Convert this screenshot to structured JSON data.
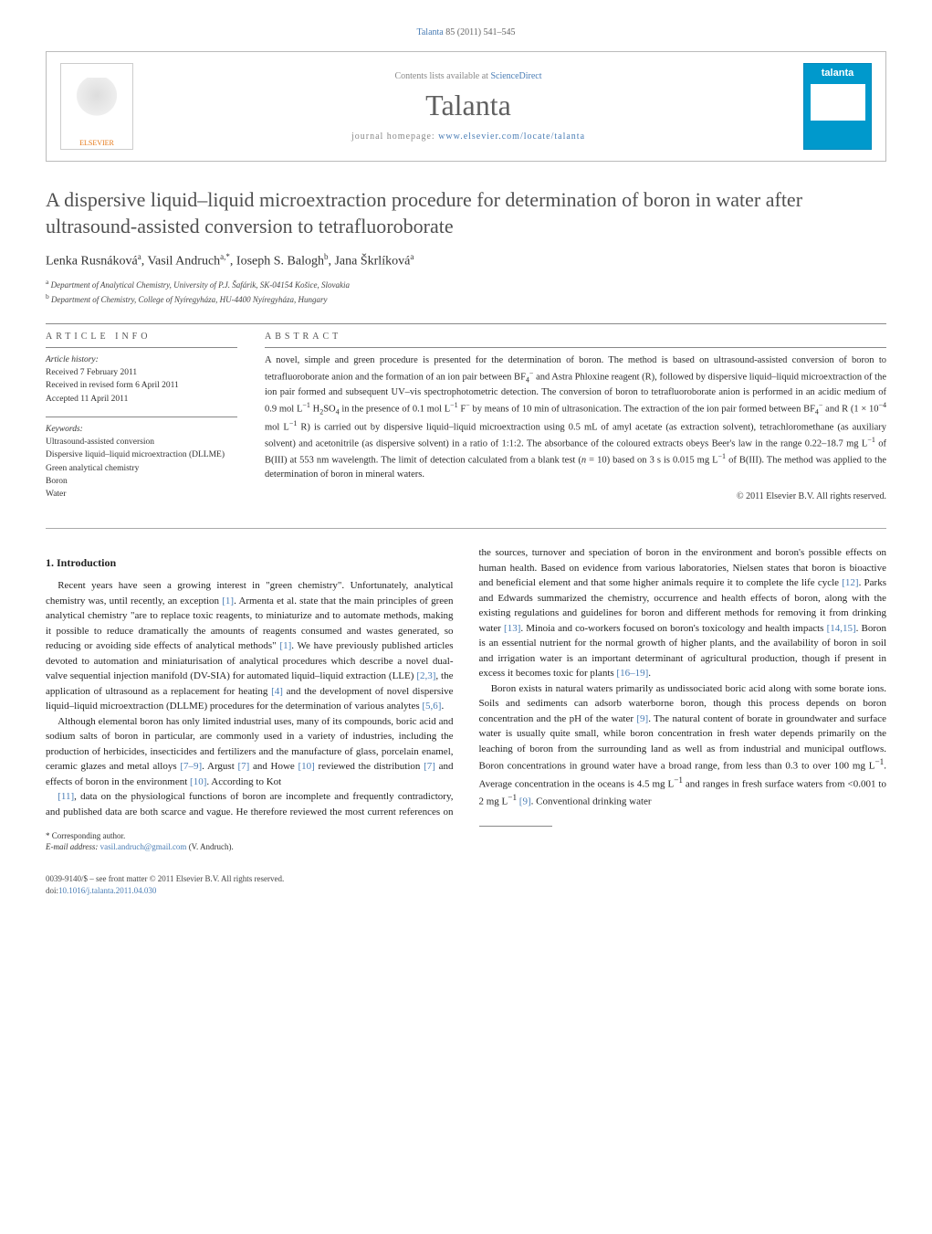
{
  "running_head": {
    "journal": "Talanta",
    "citation": "85 (2011) 541–545"
  },
  "masthead": {
    "publisher": "ELSEVIER",
    "contents_prefix": "Contents lists available at ",
    "contents_link": "ScienceDirect",
    "journal_name": "Talanta",
    "homepage_prefix": "journal homepage: ",
    "homepage_url": "www.elsevier.com/locate/talanta",
    "cover_label": "talanta"
  },
  "title": "A dispersive liquid–liquid microextraction procedure for determination of boron in water after ultrasound-assisted conversion to tetrafluoroborate",
  "authors_html": "Lenka Rusnáková<sup>a</sup>, Vasil Andruch<sup>a,*</sup>, Ioseph S. Balogh<sup>b</sup>, Jana Škrlíková<sup>a</sup>",
  "affiliations": [
    "<sup>a</sup> Department of Analytical Chemistry, University of P.J. Šafárik, SK-04154 Košice, Slovakia",
    "<sup>b</sup> Department of Chemistry, College of Nyíregyháza, HU-4400 Nyíregyháza, Hungary"
  ],
  "article_info": {
    "label": "ARTICLE INFO",
    "history_label": "Article history:",
    "history": [
      "Received 7 February 2011",
      "Received in revised form 6 April 2011",
      "Accepted 11 April 2011"
    ],
    "keywords_label": "Keywords:",
    "keywords": [
      "Ultrasound-assisted conversion",
      "Dispersive liquid–liquid microextraction (DLLME)",
      "Green analytical chemistry",
      "Boron",
      "Water"
    ]
  },
  "abstract": {
    "label": "ABSTRACT",
    "text": "A novel, simple and green procedure is presented for the determination of boron. The method is based on ultrasound-assisted conversion of boron to tetrafluoroborate anion and the formation of an ion pair between BF<sub>4</sub><sup>−</sup> and Astra Phloxine reagent (R), followed by dispersive liquid–liquid microextraction of the ion pair formed and subsequent UV–vis spectrophotometric detection. The conversion of boron to tetrafluoroborate anion is performed in an acidic medium of 0.9 mol L<sup>−1</sup> H<sub>2</sub>SO<sub>4</sub> in the presence of 0.1 mol L<sup>−1</sup> F<sup>−</sup> by means of 10 min of ultrasonication. The extraction of the ion pair formed between BF<sub>4</sub><sup>−</sup> and R (1 × 10<sup>−4</sup> mol L<sup>−1</sup> R) is carried out by dispersive liquid–liquid microextraction using 0.5 mL of amyl acetate (as extraction solvent), tetrachloromethane (as auxiliary solvent) and acetonitrile (as dispersive solvent) in a ratio of 1:1:2. The absorbance of the coloured extracts obeys Beer's law in the range 0.22–18.7 mg L<sup>−1</sup> of B(III) at 553 nm wavelength. The limit of detection calculated from a blank test (<i>n</i> = 10) based on 3 s is 0.015 mg L<sup>−1</sup> of B(III). The method was applied to the determination of boron in mineral waters.",
    "copyright": "© 2011 Elsevier B.V. All rights reserved."
  },
  "body": {
    "section1_heading": "1. Introduction",
    "para1": "Recent years have seen a growing interest in \"green chemistry\". Unfortunately, analytical chemistry was, until recently, an exception <a class=\"ref\" href=\"#\">[1]</a>. Armenta et al. state that the main principles of green analytical chemistry \"are to replace toxic reagents, to miniaturize and to automate methods, making it possible to reduce dramatically the amounts of reagents consumed and wastes generated, so reducing or avoiding side effects of analytical methods\" <a class=\"ref\" href=\"#\">[1]</a>. We have previously published articles devoted to automation and miniaturisation of analytical procedures which describe a novel dual-valve sequential injection manifold (DV-SIA) for automated liquid–liquid extraction (LLE) <a class=\"ref\" href=\"#\">[2,3]</a>, the application of ultrasound as a replacement for heating <a class=\"ref\" href=\"#\">[4]</a> and the development of novel dispersive liquid–liquid microextraction (DLLME) procedures for the determination of various analytes <a class=\"ref\" href=\"#\">[5,6]</a>.",
    "para2": "Although elemental boron has only limited industrial uses, many of its compounds, boric acid and sodium salts of boron in particular, are commonly used in a variety of industries, including the production of herbicides, insecticides and fertilizers and the manufacture of glass, porcelain enamel, ceramic glazes and metal alloys <a class=\"ref\" href=\"#\">[7–9]</a>. Argust <a class=\"ref\" href=\"#\">[7]</a> and Howe <a class=\"ref\" href=\"#\">[10]</a> reviewed the distribution <a class=\"ref\" href=\"#\">[7]</a> and effects of boron in the environment <a class=\"ref\" href=\"#\">[10]</a>. According to Kot",
    "para3": "<a class=\"ref\" href=\"#\">[11]</a>, data on the physiological functions of boron are incomplete and frequently contradictory, and published data are both scarce and vague. He therefore reviewed the most current references on the sources, turnover and speciation of boron in the environment and boron's possible effects on human health. Based on evidence from various laboratories, Nielsen states that boron is bioactive and beneficial element and that some higher animals require it to complete the life cycle <a class=\"ref\" href=\"#\">[12]</a>. Parks and Edwards summarized the chemistry, occurrence and health effects of boron, along with the existing regulations and guidelines for boron and different methods for removing it from drinking water <a class=\"ref\" href=\"#\">[13]</a>. Minoia and co-workers focused on boron's toxicology and health impacts <a class=\"ref\" href=\"#\">[14,15]</a>. Boron is an essential nutrient for the normal growth of higher plants, and the availability of boron in soil and irrigation water is an important determinant of agricultural production, though if present in excess it becomes toxic for plants <a class=\"ref\" href=\"#\">[16–19]</a>.",
    "para4": "Boron exists in natural waters primarily as undissociated boric acid along with some borate ions. Soils and sediments can adsorb waterborne boron, though this process depends on boron concentration and the pH of the water <a class=\"ref\" href=\"#\">[9]</a>. The natural content of borate in groundwater and surface water is usually quite small, while boron concentration in fresh water depends primarily on the leaching of boron from the surrounding land as well as from industrial and municipal outflows. Boron concentrations in ground water have a broad range, from less than 0.3 to over 100 mg L<sup>−1</sup>. Average concentration in the oceans is 4.5 mg L<sup>−1</sup> and ranges in fresh surface waters from <0.001 to 2 mg L<sup>−1</sup> <a class=\"ref\" href=\"#\">[9]</a>. Conventional drinking water"
  },
  "footnotes": {
    "corr_label": "* Corresponding author.",
    "email_label": "E-mail address:",
    "email": "vasil.andruch@gmail.com",
    "email_suffix": "(V. Andruch)."
  },
  "footer": {
    "line1": "0039-9140/$ – see front matter © 2011 Elsevier B.V. All rights reserved.",
    "doi_label": "doi:",
    "doi": "10.1016/j.talanta.2011.04.030"
  },
  "colors": {
    "link": "#4a7db5",
    "publisher": "#e67817",
    "cover": "#0099cc",
    "text": "#2a2a2a",
    "gray": "#606060"
  }
}
